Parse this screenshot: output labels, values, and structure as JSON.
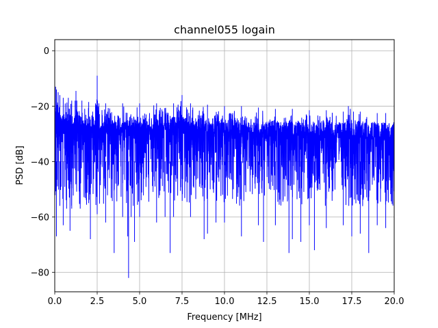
{
  "chart_data": {
    "type": "line",
    "title": "channel055 logain",
    "xlabel": "Frequency [MHz]",
    "ylabel": "PSD [dB]",
    "xlim": [
      0,
      20
    ],
    "ylim": [
      -87,
      4
    ],
    "xticks": [
      0,
      2.5,
      5,
      7.5,
      10,
      12.5,
      15,
      17.5,
      20
    ],
    "xtick_labels": [
      "0.0",
      "2.5",
      "5.0",
      "7.5",
      "10.0",
      "12.5",
      "15.0",
      "17.5",
      "20.0"
    ],
    "yticks": [
      0,
      -20,
      -40,
      -60,
      -80
    ],
    "ytick_labels": [
      "0",
      "−20",
      "−40",
      "−60",
      "−80"
    ],
    "grid": true,
    "series": [
      {
        "color": "#0000ff",
        "upper_envelope": {
          "x": [
            0.0,
            0.05,
            0.1,
            0.2,
            0.3,
            0.5,
            0.8,
            1.0,
            1.2,
            1.25,
            1.3,
            1.6,
            2.0,
            2.4,
            2.5,
            2.6,
            3.0,
            4.0,
            5.0,
            6.0,
            7.0,
            7.5,
            8.0,
            9.0,
            10.0,
            11.0,
            12.0,
            13.0,
            14.0,
            15.0,
            16.0,
            17.0,
            17.3,
            17.6,
            18.0,
            19.0,
            19.5,
            20.0
          ],
          "y": [
            -12,
            -13,
            -14,
            -15,
            -16,
            -17,
            -17,
            -18,
            -18,
            -14.5,
            -18,
            -18,
            -18.5,
            -19,
            -9,
            -19,
            -19,
            -19,
            -19,
            -19,
            -19,
            -16,
            -19,
            -19.5,
            -20,
            -20,
            -20.5,
            -21,
            -21,
            -21.5,
            -21.5,
            -22,
            -20,
            -22,
            -22,
            -22.5,
            -22.5,
            -22.5
          ]
        },
        "lower_envelope": {
          "x": [
            0.0,
            0.1,
            0.3,
            0.5,
            0.7,
            0.9,
            1.0,
            1.5,
            2.0,
            2.1,
            2.5,
            3.0,
            3.5,
            3.5,
            4.0,
            4.3,
            4.35,
            4.5,
            4.7,
            5.0,
            6.0,
            6.5,
            6.8,
            7.0,
            8.0,
            8.8,
            9.0,
            9.5,
            10.0,
            11.0,
            12.0,
            12.3,
            13.0,
            13.8,
            14.0,
            14.5,
            15.0,
            15.3,
            16.0,
            17.0,
            17.5,
            18.0,
            18.5,
            19.0,
            19.5,
            20.0
          ],
          "y": [
            -47,
            -67,
            -56,
            -63,
            -57,
            -65,
            -57,
            -57,
            -55,
            -68,
            -59,
            -62,
            -60,
            -73,
            -60,
            -67,
            -82,
            -60,
            -69,
            -60,
            -62,
            -60,
            -73,
            -60,
            -60,
            -68,
            -66,
            -62,
            -62,
            -67,
            -63,
            -69,
            -63,
            -73,
            -68,
            -69,
            -63,
            -72,
            -64,
            -63,
            -67,
            -66,
            -73,
            -63,
            -64,
            -63
          ]
        },
        "dense_band": [
          -50,
          -24
        ]
      }
    ]
  }
}
